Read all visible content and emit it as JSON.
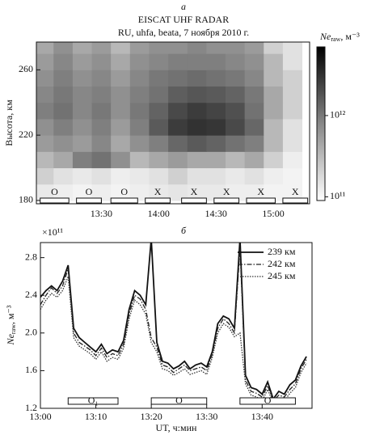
{
  "chart_data": [
    {
      "type": "heatmap",
      "panel_label": "а",
      "title": "EISCAT UHF RADAR",
      "subtitle": "RU, uhfa, beata, 7 ноября 2010 г.",
      "ylabel": "Высота, км",
      "xlim": [
        776,
        919
      ],
      "xticks": [
        {
          "value": 810,
          "label": "13:30"
        },
        {
          "value": 840,
          "label": "14:00"
        },
        {
          "value": 870,
          "label": "14:30"
        },
        {
          "value": 900,
          "label": "15:00"
        }
      ],
      "ylim": [
        178,
        277
      ],
      "yticks": [
        180,
        220,
        260
      ],
      "x": [
        780,
        790,
        800,
        810,
        820,
        830,
        840,
        850,
        860,
        870,
        880,
        890,
        900,
        910
      ],
      "y": [
        185,
        195,
        205,
        215,
        225,
        235,
        245,
        255,
        265,
        275
      ],
      "z": [
        [
          130000000000.0,
          120000000000.0,
          110000000000.0,
          120000000000.0,
          110000000000.0,
          120000000000.0,
          130000000000.0,
          140000000000.0,
          130000000000.0,
          130000000000.0,
          120000000000.0,
          120000000000.0,
          110000000000.0,
          110000000000.0
        ],
        [
          200000000000.0,
          150000000000.0,
          130000000000.0,
          150000000000.0,
          120000000000.0,
          130000000000.0,
          150000000000.0,
          200000000000.0,
          150000000000.0,
          150000000000.0,
          130000000000.0,
          150000000000.0,
          120000000000.0,
          110000000000.0
        ],
        [
          300000000000.0,
          400000000000.0,
          800000000000.0,
          1000000000000.0,
          600000000000.0,
          300000000000.0,
          400000000000.0,
          500000000000.0,
          400000000000.0,
          400000000000.0,
          300000000000.0,
          400000000000.0,
          200000000000.0,
          120000000000.0
        ],
        [
          500000000000.0,
          600000000000.0,
          500000000000.0,
          700000000000.0,
          400000000000.0,
          600000000000.0,
          800000000000.0,
          1200000000000.0,
          1500000000000.0,
          1300000000000.0,
          1000000000000.0,
          800000000000.0,
          300000000000.0,
          150000000000.0
        ],
        [
          600000000000.0,
          800000000000.0,
          600000000000.0,
          800000000000.0,
          500000000000.0,
          800000000000.0,
          1500000000000.0,
          2500000000000.0,
          3000000000000.0,
          2800000000000.0,
          2000000000000.0,
          1200000000000.0,
          300000000000.0,
          150000000000.0
        ],
        [
          800000000000.0,
          1000000000000.0,
          700000000000.0,
          900000000000.0,
          600000000000.0,
          900000000000.0,
          1300000000000.0,
          2000000000000.0,
          2500000000000.0,
          2200000000000.0,
          1800000000000.0,
          1000000000000.0,
          400000000000.0,
          200000000000.0
        ],
        [
          700000000000.0,
          900000000000.0,
          700000000000.0,
          800000000000.0,
          600000000000.0,
          800000000000.0,
          1000000000000.0,
          1400000000000.0,
          1600000000000.0,
          1500000000000.0,
          1300000000000.0,
          900000000000.0,
          400000000000.0,
          200000000000.0
        ],
        [
          600000000000.0,
          800000000000.0,
          600000000000.0,
          700000000000.0,
          500000000000.0,
          700000000000.0,
          900000000000.0,
          1000000000000.0,
          1100000000000.0,
          1000000000000.0,
          900000000000.0,
          700000000000.0,
          300000000000.0,
          200000000000.0
        ],
        [
          500000000000.0,
          700000000000.0,
          500000000000.0,
          600000000000.0,
          400000000000.0,
          600000000000.0,
          700000000000.0,
          800000000000.0,
          800000000000.0,
          800000000000.0,
          700000000000.0,
          600000000000.0,
          300000000000.0,
          150000000000.0
        ],
        [
          400000000000.0,
          600000000000.0,
          400000000000.0,
          500000000000.0,
          300000000000.0,
          500000000000.0,
          600000000000.0,
          600000000000.0,
          700000000000.0,
          600000000000.0,
          600000000000.0,
          500000000000.0,
          200000000000.0,
          150000000000.0
        ]
      ],
      "colorbar_label": {
        "main": "Ne",
        "sub": "raw",
        "unit": ", м⁻³"
      },
      "colorbar_lim": [
        90000000000.0,
        7000000000000.0
      ],
      "colorbar_log": true,
      "colorbar_ticks": [
        {
          "value": 100000000000.0,
          "label": "10¹¹"
        },
        {
          "value": 1000000000000.0,
          "label": "10¹²"
        }
      ],
      "modes": [
        {
          "label": "O",
          "start": 778,
          "end": 793
        },
        {
          "label": "O",
          "start": 797,
          "end": 810
        },
        {
          "label": "O",
          "start": 815,
          "end": 829
        },
        {
          "label": "X",
          "start": 833,
          "end": 846
        },
        {
          "label": "X",
          "start": 852,
          "end": 865
        },
        {
          "label": "X",
          "start": 869,
          "end": 882
        },
        {
          "label": "X",
          "start": 886,
          "end": 901
        },
        {
          "label": "X",
          "start": 905,
          "end": 918
        }
      ]
    },
    {
      "type": "line",
      "panel_label": "б",
      "xlabel": "UT, ч:мин",
      "ylabel": {
        "main": "Ne",
        "sub": "raw",
        "unit": ", м⁻³"
      },
      "multiplier": "×10¹¹",
      "xlim": [
        780,
        829
      ],
      "xticks": [
        {
          "value": 780,
          "label": "13:00"
        },
        {
          "value": 790,
          "label": "13:10"
        },
        {
          "value": 800,
          "label": "13:20"
        },
        {
          "value": 810,
          "label": "13:30"
        },
        {
          "value": 820,
          "label": "13:40"
        }
      ],
      "ylim": [
        1.2,
        2.96
      ],
      "yticks": [
        1.2,
        1.6,
        {
          "value": 2,
          "label": "2.0"
        },
        2.4,
        2.8
      ],
      "legend": "upper right",
      "x": [
        780,
        781,
        782,
        783,
        784,
        785,
        786,
        787,
        788,
        789,
        790,
        791,
        792,
        793,
        794,
        795,
        796,
        797,
        798,
        799,
        800,
        801,
        802,
        803,
        804,
        805,
        806,
        807,
        808,
        809,
        810,
        811,
        812,
        813,
        814,
        815,
        816,
        817,
        818,
        819,
        820,
        821,
        822,
        823,
        824,
        825,
        826,
        827,
        828
      ],
      "series": [
        {
          "name": "239 км",
          "color": "#111111",
          "style": "solid",
          "values": [
            2.38,
            2.45,
            2.5,
            2.45,
            2.55,
            2.72,
            2.05,
            1.95,
            1.9,
            1.85,
            1.8,
            1.88,
            1.78,
            1.82,
            1.8,
            1.92,
            2.25,
            2.45,
            2.4,
            2.3,
            3.0,
            1.9,
            1.7,
            1.68,
            1.62,
            1.65,
            1.7,
            1.62,
            1.66,
            1.68,
            1.64,
            1.8,
            2.1,
            2.18,
            2.15,
            2.05,
            3.0,
            1.55,
            1.42,
            1.4,
            1.35,
            1.48,
            1.3,
            1.38,
            1.35,
            1.45,
            1.5,
            1.65,
            1.75
          ]
        },
        {
          "name": "242 км",
          "color": "#222222",
          "style": "dashdot",
          "values": [
            2.3,
            2.4,
            2.48,
            2.42,
            2.5,
            2.68,
            2.0,
            1.9,
            1.86,
            1.82,
            1.76,
            1.84,
            1.74,
            1.78,
            1.76,
            1.88,
            2.2,
            2.4,
            2.36,
            2.25,
            1.95,
            1.85,
            1.66,
            1.64,
            1.58,
            1.62,
            1.66,
            1.6,
            1.62,
            1.64,
            1.6,
            1.78,
            2.05,
            2.15,
            2.1,
            2.0,
            2.9,
            1.5,
            1.38,
            1.36,
            1.32,
            1.44,
            1.28,
            1.34,
            1.32,
            1.4,
            1.46,
            1.62,
            1.72
          ]
        },
        {
          "name": "245 км",
          "color": "#333333",
          "style": "dotted",
          "values": [
            2.25,
            2.35,
            2.42,
            2.38,
            2.45,
            2.6,
            1.95,
            1.86,
            1.82,
            1.78,
            1.72,
            1.8,
            1.7,
            1.74,
            1.72,
            1.84,
            2.15,
            2.35,
            2.3,
            2.2,
            1.9,
            1.8,
            1.62,
            1.6,
            1.55,
            1.58,
            1.62,
            1.56,
            1.58,
            1.6,
            1.56,
            1.74,
            2.0,
            2.1,
            2.06,
            1.96,
            2.0,
            1.46,
            1.34,
            1.32,
            1.28,
            1.4,
            1.26,
            1.3,
            1.28,
            1.36,
            1.42,
            1.58,
            1.68
          ]
        }
      ],
      "modes": [
        {
          "label": "O₁",
          "start": 785,
          "end": 794
        },
        {
          "label": "O",
          "start": 800,
          "end": 810
        },
        {
          "label": "O",
          "start": 816,
          "end": 826
        }
      ]
    }
  ]
}
